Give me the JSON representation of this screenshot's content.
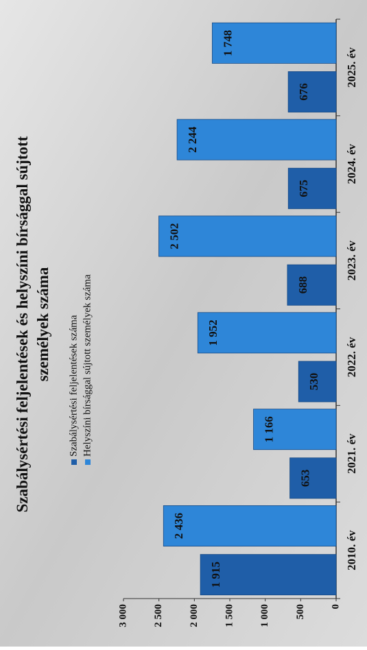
{
  "chart_data": {
    "type": "bar",
    "title": "Szabálysértési feljelentések és helyszíni bírsággal sújtott személyek száma",
    "categories": [
      "2010. év",
      "2021. év",
      "2022. év",
      "2023. év",
      "2024. év",
      "2025. év"
    ],
    "series": [
      {
        "name": "Szabálysértési feljelentések száma",
        "color": "#1f5ea8",
        "values": [
          1915,
          653,
          530,
          688,
          675,
          676
        ],
        "value_labels": [
          "1 915",
          "653",
          "530",
          "688",
          "675",
          "676"
        ]
      },
      {
        "name": "Helyszíni bírsággal sújtott személyek száma",
        "color": "#2e86d8",
        "values": [
          2436,
          1166,
          1952,
          2502,
          2244,
          1748
        ],
        "value_labels": [
          "2 436",
          "1 166",
          "1 952",
          "2 502",
          "2 244",
          "1 748"
        ]
      }
    ],
    "ylim": [
      0,
      3000
    ],
    "yticks": [
      0,
      500,
      {
        "value": 1000,
        "label": "1 000"
      },
      {
        "value": 1500,
        "label": "1 500"
      },
      {
        "value": 2000,
        "label": "2 000"
      },
      {
        "value": 2500,
        "label": "2 500"
      },
      {
        "value": 3000,
        "label": "3 000"
      }
    ],
    "legend": "top",
    "grid": false
  }
}
